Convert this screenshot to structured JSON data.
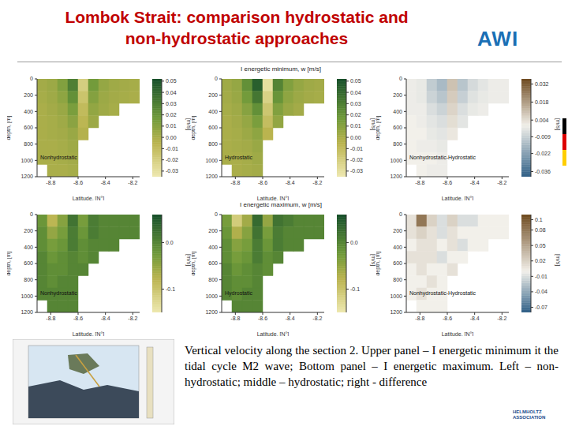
{
  "title_lines": [
    "Lombok Strait: comparison hydrostatic and",
    "non-hydrostatic approaches"
  ],
  "logo": "AWI",
  "caption": "Vertical velocity along the section 2. Upper panel – I energetic minimum it the tidal cycle M2 wave; Bottom panel – I energetic maximum. Left – non-hydrostatic; middle – hydrostatic; right - difference",
  "footer_logo": [
    "HELMHOLTZ",
    "ASSOCIATION"
  ],
  "chart_data": [
    {
      "type": "heatmap",
      "label": "Nonhydrostatic",
      "xlabel": "Latitude, [N°]",
      "ylabel": "depth, [m]",
      "x_edges": [
        -8.9,
        -8.825,
        -8.75,
        -8.675,
        -8.6,
        -8.525,
        -8.45,
        -8.375,
        -8.3,
        -8.225,
        -8.15
      ],
      "y_edges": [
        0,
        150,
        300,
        450,
        600,
        750,
        900,
        1050,
        1200
      ],
      "cells": [
        [
          0.002,
          0.004,
          0.012,
          0.03,
          -0.02,
          0.016,
          0.006,
          0.003,
          0.002,
          0.001
        ],
        [
          0.001,
          0.003,
          0.008,
          0.022,
          -0.014,
          0.011,
          0.004,
          0.002,
          0.001,
          0.0
        ],
        [
          0.0,
          0.002,
          0.005,
          0.014,
          -0.009,
          0.007,
          0.003,
          0.001,
          null,
          null
        ],
        [
          0.0,
          0.001,
          0.003,
          0.009,
          -0.006,
          0.004,
          null,
          null,
          null,
          null
        ],
        [
          0.0,
          0.001,
          0.002,
          0.005,
          -0.003,
          null,
          null,
          null,
          null,
          null
        ],
        [
          0.0,
          0.0,
          0.001,
          0.003,
          null,
          null,
          null,
          null,
          null,
          null
        ],
        [
          0.0,
          0.0,
          0.001,
          0.002,
          null,
          null,
          null,
          null,
          null,
          null
        ],
        [
          null,
          0.0,
          0.0,
          0.001,
          null,
          null,
          null,
          null,
          null,
          null
        ]
      ],
      "xlim": [
        -8.9,
        -8.15
      ],
      "xticks": [
        -8.8,
        -8.6,
        -8.4,
        -8.2
      ],
      "ylim": [
        0,
        1200
      ],
      "yticks": [
        0,
        200,
        400,
        600,
        800,
        1000,
        1200
      ],
      "colorbar": {
        "label": "[m/s]",
        "range": [
          -0.035,
          0.052
        ],
        "ticks": [
          0.05,
          0.04,
          0.03,
          0.02,
          0.01,
          {
            "value": 0,
            "label": "0.00"
          },
          -0.01,
          -0.02,
          -0.03
        ]
      }
    },
    {
      "type": "heatmap",
      "title": "I energetic minimum, w [m/s]",
      "label": "Hydrostatic",
      "xlabel": "Latitude, [N°]",
      "ylabel": "depth, [m]",
      "x_edges": [
        -8.9,
        -8.825,
        -8.75,
        -8.675,
        -8.6,
        -8.525,
        -8.45,
        -8.375,
        -8.3,
        -8.225,
        -8.15
      ],
      "y_edges": [
        0,
        150,
        300,
        450,
        600,
        750,
        900,
        1050,
        1200
      ],
      "cells": [
        [
          0.003,
          0.006,
          0.022,
          0.045,
          -0.03,
          0.028,
          0.012,
          0.006,
          0.003,
          0.002
        ],
        [
          0.002,
          0.005,
          0.016,
          0.034,
          -0.022,
          0.02,
          0.008,
          0.004,
          0.002,
          0.001
        ],
        [
          0.001,
          0.003,
          0.01,
          0.022,
          -0.015,
          0.012,
          0.005,
          0.002,
          null,
          null
        ],
        [
          0.0,
          0.002,
          0.006,
          0.014,
          -0.01,
          0.007,
          null,
          null,
          null,
          null
        ],
        [
          0.0,
          0.001,
          0.004,
          0.008,
          -0.005,
          null,
          null,
          null,
          null,
          null
        ],
        [
          0.0,
          0.001,
          0.002,
          0.005,
          null,
          null,
          null,
          null,
          null,
          null
        ],
        [
          0.0,
          0.0,
          0.001,
          0.003,
          null,
          null,
          null,
          null,
          null,
          null
        ],
        [
          null,
          0.0,
          0.001,
          0.002,
          null,
          null,
          null,
          null,
          null,
          null
        ]
      ],
      "xlim": [
        -8.9,
        -8.15
      ],
      "xticks": [
        -8.8,
        -8.6,
        -8.4,
        -8.2
      ],
      "ylim": [
        0,
        1200
      ],
      "yticks": [
        0,
        200,
        400,
        600,
        800,
        1000,
        1200
      ],
      "colorbar": {
        "label": "[m/s]",
        "range": [
          -0.035,
          0.052
        ],
        "ticks": [
          0.05,
          0.04,
          0.03,
          0.02,
          0.01,
          {
            "value": 0,
            "label": "0.00"
          },
          -0.01,
          -0.02,
          -0.03
        ]
      }
    },
    {
      "type": "heatmap",
      "label": "Nonhydrostatic-Hydrostatic",
      "xlabel": "Latitude, [N°]",
      "ylabel": "depth, [m]",
      "x_edges": [
        -8.9,
        -8.825,
        -8.75,
        -8.675,
        -8.6,
        -8.525,
        -8.45,
        -8.375,
        -8.3,
        -8.225,
        -8.15
      ],
      "y_edges": [
        0,
        150,
        300,
        450,
        600,
        750,
        900,
        1050,
        1200
      ],
      "cells": [
        [
          -0.001,
          -0.002,
          -0.01,
          -0.015,
          0.01,
          -0.012,
          -0.006,
          -0.003,
          -0.001,
          -0.001
        ],
        [
          -0.001,
          -0.002,
          -0.008,
          -0.012,
          0.008,
          -0.009,
          -0.004,
          -0.002,
          -0.001,
          -0.001
        ],
        [
          -0.001,
          -0.001,
          -0.005,
          -0.008,
          0.006,
          -0.005,
          -0.002,
          -0.001,
          null,
          null
        ],
        [
          0.0,
          -0.001,
          -0.003,
          -0.005,
          0.004,
          -0.003,
          null,
          null,
          null,
          null
        ],
        [
          0.0,
          0.0,
          -0.002,
          -0.003,
          0.002,
          null,
          null,
          null,
          null,
          null
        ],
        [
          0.0,
          -0.001,
          -0.001,
          -0.002,
          null,
          null,
          null,
          null,
          null,
          null
        ],
        [
          0.0,
          0.0,
          0.0,
          -0.001,
          null,
          null,
          null,
          null,
          null,
          null
        ],
        [
          null,
          0.0,
          -0.001,
          -0.001,
          null,
          null,
          null,
          null,
          null,
          null
        ]
      ],
      "xlim": [
        -8.9,
        -8.15
      ],
      "xticks": [
        -8.8,
        -8.6,
        -8.4,
        -8.2
      ],
      "ylim": [
        0,
        1200
      ],
      "yticks": [
        0,
        200,
        400,
        600,
        800,
        1000,
        1200
      ],
      "colorbar": {
        "label": "[m/s]",
        "range": [
          -0.04,
          0.036
        ],
        "ticks": [
          0.032,
          0.018,
          0.004,
          -0.009,
          -0.022,
          -0.036
        ]
      }
    },
    {
      "type": "heatmap",
      "label": "Nonhydrostatic",
      "xlabel": "Latitude, [N°]",
      "ylabel": "depth, [m]",
      "x_edges": [
        -8.9,
        -8.825,
        -8.75,
        -8.675,
        -8.6,
        -8.525,
        -8.45,
        -8.375,
        -8.3,
        -8.225,
        -8.15
      ],
      "y_edges": [
        0,
        150,
        300,
        450,
        600,
        750,
        900,
        1050,
        1200
      ],
      "cells": [
        [
          -0.02,
          -0.08,
          -0.04,
          0.02,
          -0.03,
          0.01,
          0.0,
          0.0,
          0.0,
          0.0
        ],
        [
          -0.01,
          -0.05,
          -0.03,
          0.01,
          -0.02,
          0.01,
          0.0,
          0.0,
          0.0,
          0.0
        ],
        [
          -0.01,
          -0.03,
          -0.02,
          0.01,
          -0.01,
          0.0,
          0.0,
          0.0,
          null,
          null
        ],
        [
          0.0,
          -0.02,
          -0.01,
          0.0,
          -0.01,
          0.0,
          null,
          null,
          null,
          null
        ],
        [
          0.0,
          -0.01,
          -0.01,
          0.0,
          0.0,
          null,
          null,
          null,
          null,
          null
        ],
        [
          0.0,
          -0.01,
          0.0,
          0.0,
          null,
          null,
          null,
          null,
          null,
          null
        ],
        [
          0.0,
          0.0,
          0.0,
          0.0,
          null,
          null,
          null,
          null,
          null,
          null
        ],
        [
          null,
          0.0,
          0.0,
          0.0,
          null,
          null,
          null,
          null,
          null,
          null
        ]
      ],
      "xlim": [
        -8.9,
        -8.15
      ],
      "xticks": [
        -8.8,
        -8.6,
        -8.4,
        -8.2
      ],
      "ylim": [
        0,
        1200
      ],
      "yticks": [
        0,
        200,
        400,
        600,
        800,
        1000,
        1200
      ],
      "colorbar": {
        "label": "[m/s]",
        "range": [
          -0.15,
          0.06
        ],
        "ticks": [
          {
            "value": 0,
            "label": "0.0"
          },
          -0.1
        ]
      }
    },
    {
      "type": "heatmap",
      "title": "I energetic maximum, w [m/s]",
      "label": "Hydrostatic",
      "xlabel": "Latitude, [N°]",
      "ylabel": "depth, [m]",
      "x_edges": [
        -8.9,
        -8.825,
        -8.75,
        -8.675,
        -8.6,
        -8.525,
        -8.45,
        -8.375,
        -8.3,
        -8.225,
        -8.15
      ],
      "y_edges": [
        0,
        150,
        300,
        450,
        600,
        750,
        900,
        1050,
        1200
      ],
      "cells": [
        [
          -0.03,
          -0.11,
          -0.06,
          0.03,
          -0.05,
          0.02,
          0.01,
          0.0,
          0.0,
          0.0
        ],
        [
          -0.02,
          -0.07,
          -0.04,
          0.02,
          -0.03,
          0.01,
          0.0,
          0.0,
          0.0,
          0.0
        ],
        [
          -0.01,
          -0.04,
          -0.03,
          0.01,
          -0.02,
          0.01,
          0.0,
          0.0,
          null,
          null
        ],
        [
          -0.01,
          -0.03,
          -0.02,
          0.01,
          -0.01,
          0.0,
          null,
          null,
          null,
          null
        ],
        [
          0.0,
          -0.02,
          -0.01,
          0.0,
          -0.01,
          null,
          null,
          null,
          null,
          null
        ],
        [
          0.0,
          -0.01,
          -0.01,
          0.0,
          null,
          null,
          null,
          null,
          null,
          null
        ],
        [
          0.0,
          -0.01,
          0.0,
          0.0,
          null,
          null,
          null,
          null,
          null,
          null
        ],
        [
          null,
          0.0,
          0.0,
          0.0,
          null,
          null,
          null,
          null,
          null,
          null
        ]
      ],
      "xlim": [
        -8.9,
        -8.15
      ],
      "xticks": [
        -8.8,
        -8.6,
        -8.4,
        -8.2
      ],
      "ylim": [
        0,
        1200
      ],
      "yticks": [
        0,
        200,
        400,
        600,
        800,
        1000,
        1200
      ],
      "colorbar": {
        "label": "[m/s]",
        "range": [
          -0.15,
          0.06
        ],
        "ticks": [
          {
            "value": 0,
            "label": "0.0"
          },
          -0.1
        ]
      }
    },
    {
      "type": "heatmap",
      "label": "Nonhydrostatic-Hydrostatic",
      "xlabel": "Latitude, [N°]",
      "ylabel": "depth, [m]",
      "x_edges": [
        -8.9,
        -8.825,
        -8.75,
        -8.675,
        -8.6,
        -8.525,
        -8.45,
        -8.375,
        -8.3,
        -8.225,
        -8.15
      ],
      "y_edges": [
        0,
        150,
        300,
        450,
        600,
        750,
        900,
        1050,
        1200
      ],
      "cells": [
        [
          0.01,
          0.08,
          0.02,
          -0.01,
          0.02,
          -0.01,
          -0.01,
          0.0,
          0.0,
          0.0
        ],
        [
          0.01,
          0.02,
          0.01,
          -0.01,
          0.01,
          0.0,
          0.0,
          0.0,
          0.0,
          0.0
        ],
        [
          0.0,
          0.01,
          0.01,
          0.0,
          0.01,
          -0.01,
          0.0,
          0.0,
          null,
          null
        ],
        [
          0.01,
          0.01,
          0.01,
          -0.01,
          0.0,
          0.0,
          null,
          null,
          null,
          null
        ],
        [
          0.0,
          0.01,
          0.0,
          0.0,
          0.01,
          null,
          null,
          null,
          null,
          null
        ],
        [
          0.0,
          0.0,
          0.01,
          0.0,
          null,
          null,
          null,
          null,
          null,
          null
        ],
        [
          0.0,
          0.01,
          0.0,
          0.0,
          null,
          null,
          null,
          null,
          null,
          null
        ],
        [
          null,
          0.0,
          0.0,
          0.0,
          null,
          null,
          null,
          null,
          null,
          null
        ]
      ],
      "xlim": [
        -8.9,
        -8.15
      ],
      "xticks": [
        -8.8,
        -8.6,
        -8.4,
        -8.2
      ],
      "ylim": [
        0,
        1200
      ],
      "yticks": [
        0,
        200,
        400,
        600,
        800,
        1000,
        1200
      ],
      "colorbar": {
        "label": "[m/s]",
        "range": [
          -0.08,
          0.11
        ],
        "ticks": [
          0.1,
          0.08,
          0.05,
          0.02,
          -0.01,
          -0.04,
          -0.07
        ]
      }
    }
  ]
}
